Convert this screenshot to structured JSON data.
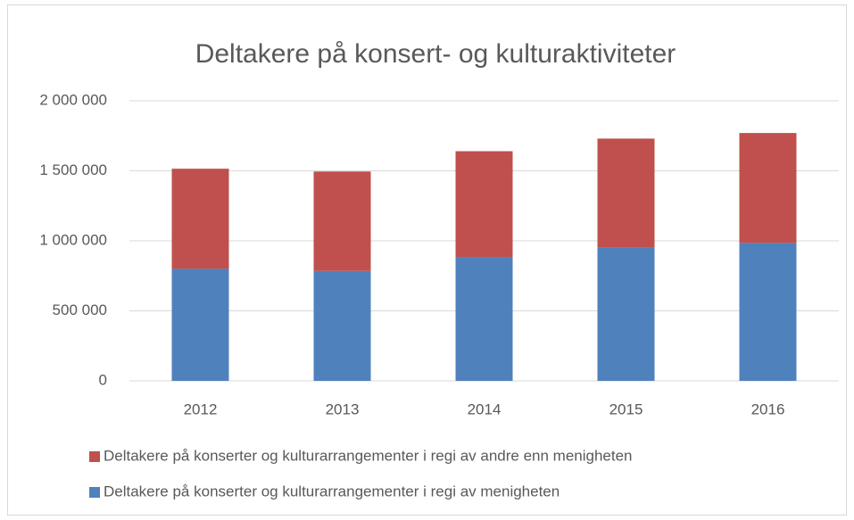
{
  "chart_data": {
    "type": "stacked-bar",
    "title": "Deltakere på konsert- og kulturaktiviteter",
    "categories": [
      "2012",
      "2013",
      "2014",
      "2015",
      "2016"
    ],
    "series": [
      {
        "name": "Deltakere på konserter og kulturarrangementer i regi av menigheten",
        "color": "#4f81bd",
        "values": [
          800000,
          785000,
          885000,
          950000,
          985000
        ]
      },
      {
        "name": "Deltakere på konserter og kulturarrangementer i regi av andre enn menigheten",
        "color": "#c0504d",
        "values": [
          715000,
          710000,
          755000,
          780000,
          785000
        ]
      }
    ],
    "ylim": [
      0,
      2000000
    ],
    "yticks": [
      0,
      {
        "value": 500000,
        "label": "500 000"
      },
      {
        "value": 1000000,
        "label": "1 000 000"
      },
      {
        "value": 1500000,
        "label": "1 500 000"
      },
      {
        "value": 2000000,
        "label": "2 000 000"
      }
    ],
    "grid": true,
    "legend": "bottom"
  }
}
